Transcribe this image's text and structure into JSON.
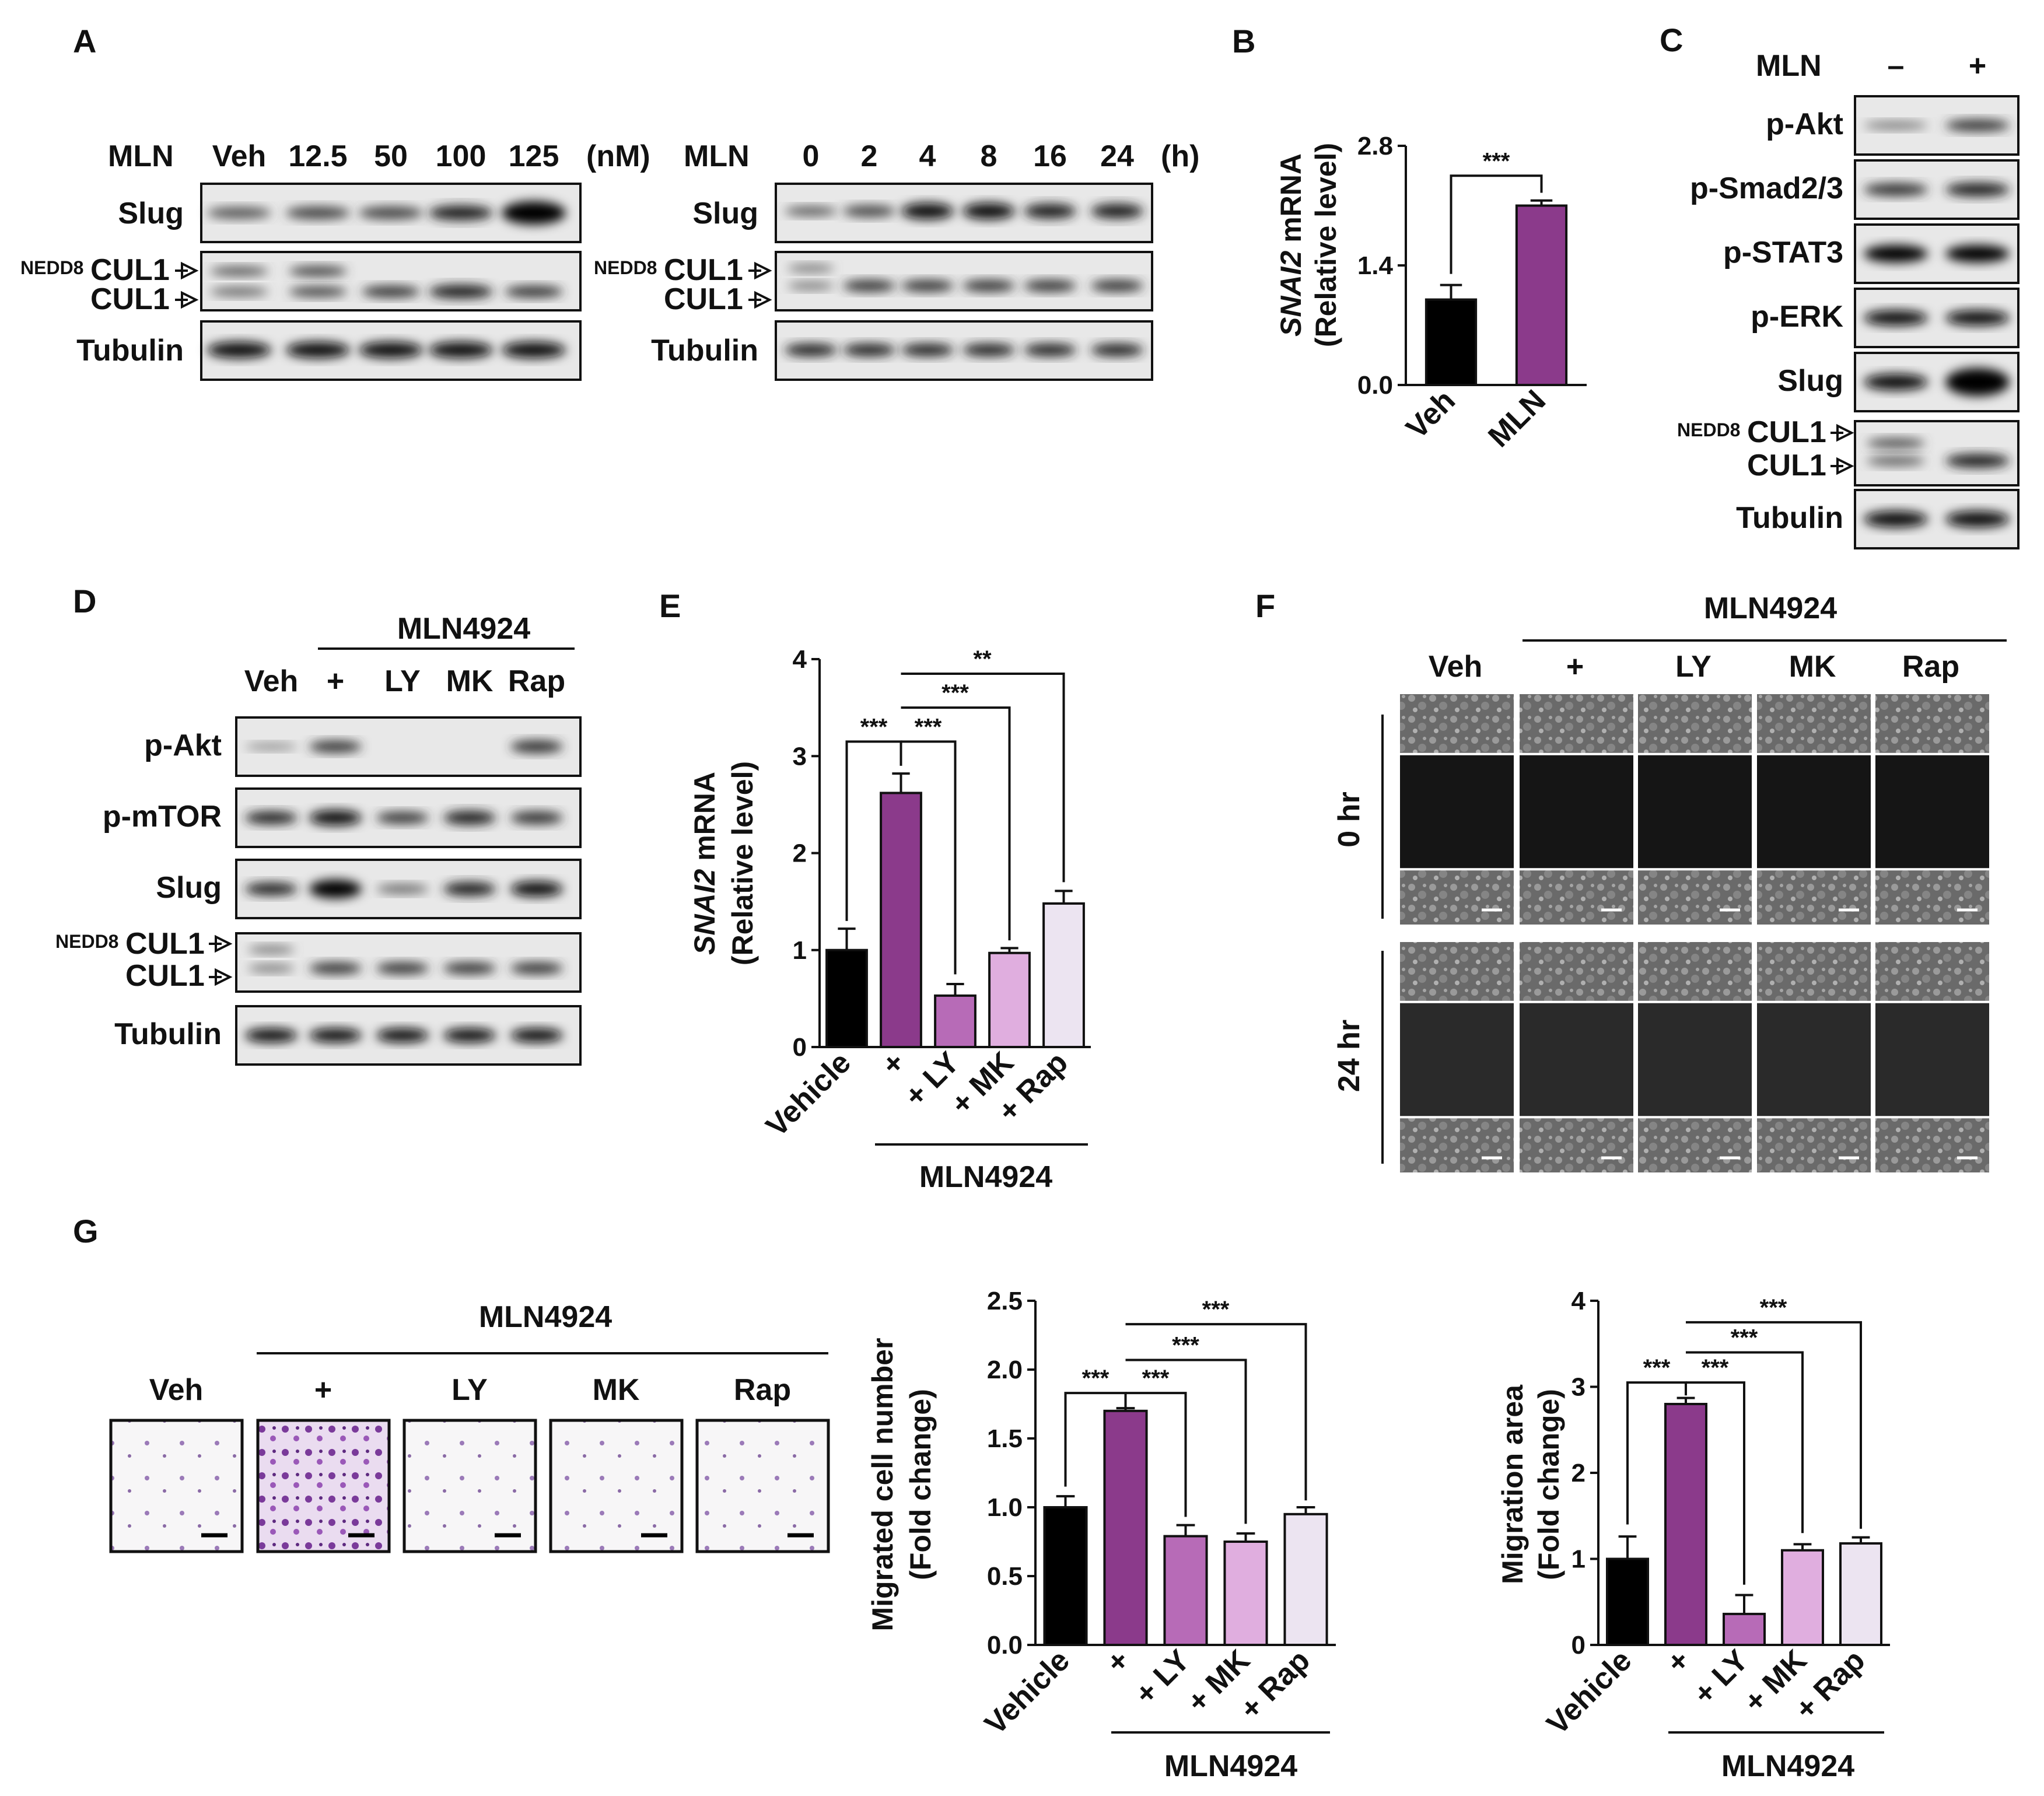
{
  "panels": [
    "A",
    "B",
    "C",
    "D",
    "E",
    "F",
    "G"
  ],
  "colors": {
    "vehicle": "#000000",
    "mln": "#8B3A8B",
    "ly": "#B76BB7",
    "mk": "#E0AEDF",
    "rap": "#ECE4F1"
  },
  "A": {
    "left": {
      "row_label": "MLN",
      "conditions": [
        "Veh",
        "12.5",
        "50",
        "100",
        "125"
      ],
      "unit": "(nM)"
    },
    "right": {
      "row_label": "MLN",
      "conditions": [
        "0",
        "2",
        "4",
        "8",
        "16",
        "24"
      ],
      "unit": "(h)"
    },
    "blots": {
      "slug": "Slug",
      "nedd8_sup": "NEDD8",
      "cul1": "CUL1",
      "tubulin": "Tubulin"
    }
  },
  "B": {
    "ylabel_gene": "SNAI2",
    "ylabel_rest": " mRNA",
    "ylabel2": "(Relative level)",
    "sig": "***"
  },
  "C": {
    "row_label": "MLN",
    "minus": "–",
    "plus": "+",
    "blots": [
      "p-Akt",
      "p-Smad2/3",
      "p-STAT3",
      "p-ERK",
      "Slug"
    ],
    "nedd8_sup": "NEDD8",
    "cul1": "CUL1",
    "tubulin": "Tubulin"
  },
  "D": {
    "treatment": "MLN4924",
    "conditions": [
      "Veh",
      "+",
      "LY",
      "MK",
      "Rap"
    ],
    "blots": [
      "p-Akt",
      "p-mTOR",
      "Slug"
    ],
    "nedd8_sup": "NEDD8",
    "cul1": "CUL1",
    "tubulin": "Tubulin"
  },
  "E": {
    "ylabel_gene": "SNAI2",
    "ylabel_rest": " mRNA",
    "ylabel2": "(Relative level)",
    "group_label": "MLN4924",
    "sig": [
      "***",
      "***",
      "***",
      "**"
    ]
  },
  "F": {
    "treatment": "MLN4924",
    "conditions": [
      "Veh",
      "+",
      "LY",
      "MK",
      "Rap"
    ],
    "times": [
      "0 hr",
      "24 hr"
    ]
  },
  "G": {
    "treatment": "MLN4924",
    "conditions": [
      "Veh",
      "+",
      "LY",
      "MK",
      "Rap"
    ],
    "sig1": [
      "***",
      "***",
      "***",
      "***"
    ],
    "sig2": [
      "***",
      "***",
      "***",
      "***"
    ],
    "group_label": "MLN4924"
  },
  "chart_data": [
    {
      "type": "bar",
      "panel": "B",
      "categories": [
        "Veh",
        "MLN"
      ],
      "values": [
        1.0,
        2.1
      ],
      "errors": [
        0.17,
        0.06
      ],
      "ylabel": "SNAI2 mRNA (Relative level)",
      "ylim": [
        0,
        2.8
      ],
      "yticks": [
        "0.0",
        "1.4",
        "2.8"
      ]
    },
    {
      "type": "bar",
      "panel": "E",
      "categories": [
        "Vehicle",
        "+",
        "+ LY",
        "+ MK",
        "+ Rap"
      ],
      "values": [
        1.0,
        2.62,
        0.53,
        0.97,
        1.48
      ],
      "errors": [
        0.22,
        0.2,
        0.12,
        0.05,
        0.13
      ],
      "ylabel": "SNAI2 mRNA (Relative level)",
      "ylim": [
        0,
        4
      ],
      "yticks": [
        "0",
        "1",
        "2",
        "3",
        "4"
      ]
    },
    {
      "type": "bar",
      "panel": "G-middle",
      "categories": [
        "Vehicle",
        "+",
        "+ LY",
        "+ MK",
        "+ Rap"
      ],
      "values": [
        1.0,
        1.7,
        0.79,
        0.75,
        0.95
      ],
      "errors": [
        0.08,
        0.02,
        0.08,
        0.06,
        0.05
      ],
      "ylabel": "Migrated cell number (Fold change)",
      "ylim": [
        0,
        2.5
      ],
      "yticks": [
        "0.0",
        "0.5",
        "1.0",
        "1.5",
        "2.0",
        "2.5"
      ]
    },
    {
      "type": "bar",
      "panel": "G-right",
      "categories": [
        "Vehicle",
        "+",
        "+ LY",
        "+ MK",
        "+ Rap"
      ],
      "values": [
        1.0,
        2.8,
        0.36,
        1.1,
        1.18
      ],
      "errors": [
        0.26,
        0.07,
        0.22,
        0.07,
        0.07
      ],
      "ylabel": "Migration area (Fold change)",
      "ylim": [
        0,
        4
      ],
      "yticks": [
        "0",
        "1",
        "2",
        "3",
        "4"
      ]
    }
  ]
}
